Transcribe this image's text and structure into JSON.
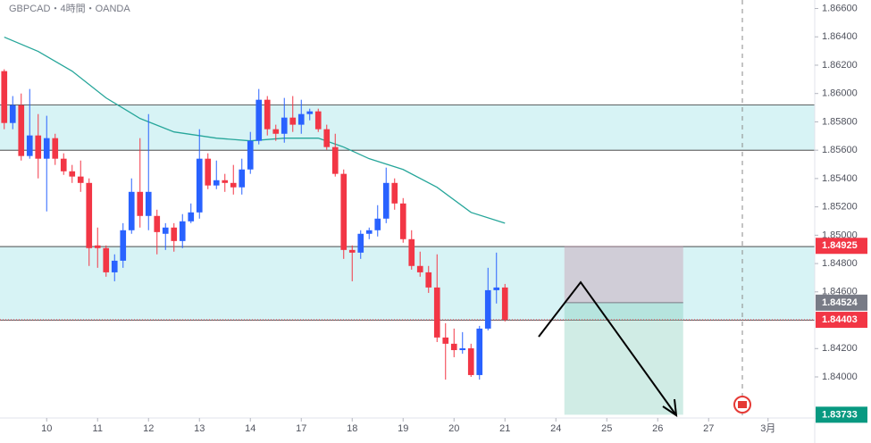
{
  "chart_data": {
    "type": "candlestick",
    "title": "GBPCAD・4時間・OANDA",
    "ylim": [
      1.8371,
      1.8666
    ],
    "xlim": [
      -0.5,
      95.5
    ],
    "yticks": [
      {
        "value": 1.866,
        "label": "1.86600"
      },
      {
        "value": 1.864,
        "label": "1.86400"
      },
      {
        "value": 1.862,
        "label": "1.86200"
      },
      {
        "value": 1.86,
        "label": "1.86000"
      },
      {
        "value": 1.858,
        "label": "1.85800"
      },
      {
        "value": 1.856,
        "label": "1.85600"
      },
      {
        "value": 1.854,
        "label": "1.85400"
      },
      {
        "value": 1.852,
        "label": "1.85200"
      },
      {
        "value": 1.85,
        "label": "1.85000"
      },
      {
        "value": 1.848,
        "label": "1.84800"
      },
      {
        "value": 1.846,
        "label": "1.84600"
      },
      {
        "value": 1.842,
        "label": "1.84200"
      },
      {
        "value": 1.84,
        "label": "1.84000"
      }
    ],
    "xticks": [
      {
        "value": 5,
        "label": "10"
      },
      {
        "value": 11,
        "label": "11"
      },
      {
        "value": 17,
        "label": "12"
      },
      {
        "value": 23,
        "label": "13"
      },
      {
        "value": 29,
        "label": "14"
      },
      {
        "value": 35,
        "label": "17"
      },
      {
        "value": 41,
        "label": "18"
      },
      {
        "value": 47,
        "label": "19"
      },
      {
        "value": 53,
        "label": "20"
      },
      {
        "value": 59,
        "label": "21"
      },
      {
        "value": 65,
        "label": "24"
      },
      {
        "value": 71,
        "label": "25"
      },
      {
        "value": 77,
        "label": "26"
      },
      {
        "value": 83,
        "label": "27"
      },
      {
        "value": 90,
        "label": "3月"
      }
    ],
    "up_color": "#2962ff",
    "down_color": "#f23645",
    "candles": {
      "open": [
        1.86158,
        1.85792,
        1.85918,
        1.85559,
        1.85704,
        1.8554,
        1.85685,
        1.8554,
        1.85451,
        1.85414,
        1.85369,
        1.84928,
        1.84909,
        1.84738,
        1.8482,
        1.85035,
        1.85306,
        1.85136,
        1.85136,
        1.8501,
        1.85054,
        1.84959,
        1.85098,
        1.85161,
        1.8554,
        1.85351,
        1.85388,
        1.85369,
        1.85338,
        1.85464,
        1.85666,
        1.85956,
        1.85748,
        1.85716,
        1.8583,
        1.8578,
        1.85855,
        1.85874,
        1.85748,
        1.85622,
        1.85433,
        1.84896,
        1.84877,
        1.8501,
        1.85035,
        1.85117,
        1.85369,
        1.85224,
        1.84972,
        1.84783,
        1.84738,
        1.84631,
        1.84278,
        1.84234,
        1.84189,
        1.84202,
        1.84013,
        1.84341,
        1.84612,
        1.84631
      ],
      "high": [
        1.86171,
        1.85982,
        1.86,
        1.86032,
        1.85855,
        1.85843,
        1.85716,
        1.85578,
        1.85496,
        1.85527,
        1.85401,
        1.85054,
        1.84928,
        1.84865,
        1.85085,
        1.85401,
        1.85685,
        1.85855,
        1.8518,
        1.85085,
        1.85085,
        1.85149,
        1.85224,
        1.85748,
        1.85578,
        1.85527,
        1.85433,
        1.85496,
        1.8554,
        1.85729,
        1.86032,
        1.85982,
        1.8578,
        1.85969,
        1.85982,
        1.85956,
        1.85893,
        1.85893,
        1.8578,
        1.85716,
        1.85464,
        1.84928,
        1.85035,
        1.85054,
        1.85212,
        1.85477,
        1.85401,
        1.85262,
        1.85035,
        1.84884,
        1.84783,
        1.84865,
        1.84379,
        1.84341,
        1.84316,
        1.84234,
        1.8436,
        1.8477,
        1.84877,
        1.84656
      ],
      "low": [
        1.85748,
        1.85748,
        1.85527,
        1.8554,
        1.85401,
        1.85168,
        1.85496,
        1.85426,
        1.85369,
        1.85306,
        1.84783,
        1.8477,
        1.84707,
        1.84675,
        1.8477,
        1.8501,
        1.85054,
        1.85035,
        1.84865,
        1.84896,
        1.84884,
        1.84909,
        1.85085,
        1.85117,
        1.85325,
        1.85325,
        1.85306,
        1.85287,
        1.85287,
        1.85433,
        1.85641,
        1.85704,
        1.85666,
        1.85653,
        1.85729,
        1.85716,
        1.85811,
        1.85729,
        1.85603,
        1.85414,
        1.84833,
        1.84675,
        1.84833,
        1.84972,
        1.84991,
        1.85085,
        1.8518,
        1.84947,
        1.84757,
        1.84707,
        1.84593,
        1.84246,
        1.83981,
        1.84139,
        1.84164,
        1.84,
        1.83981,
        1.84328,
        1.84518,
        1.84391
      ],
      "close": [
        1.85792,
        1.85918,
        1.85559,
        1.85704,
        1.8554,
        1.85685,
        1.8554,
        1.85451,
        1.85414,
        1.85369,
        1.84909,
        1.84909,
        1.84738,
        1.8482,
        1.85035,
        1.85306,
        1.85136,
        1.85306,
        1.85022,
        1.85054,
        1.84959,
        1.85098,
        1.85161,
        1.8554,
        1.85351,
        1.85388,
        1.85369,
        1.85338,
        1.85464,
        1.85666,
        1.85956,
        1.85748,
        1.85716,
        1.8583,
        1.8578,
        1.85855,
        1.85874,
        1.85748,
        1.85622,
        1.85433,
        1.84896,
        1.84877,
        1.8501,
        1.85035,
        1.85117,
        1.85369,
        1.85224,
        1.84972,
        1.84783,
        1.84738,
        1.84631,
        1.84278,
        1.84234,
        1.84189,
        1.84202,
        1.84013,
        1.84341,
        1.84612,
        1.84631,
        1.84404
      ]
    },
    "moving_average": {
      "color": "#26a69a",
      "x": [
        0,
        4,
        8,
        12,
        16,
        20,
        25,
        29,
        33,
        37,
        40,
        43,
        47,
        51,
        55,
        59
      ],
      "values": [
        1.86398,
        1.86297,
        1.86158,
        1.85969,
        1.85824,
        1.85729,
        1.85685,
        1.85666,
        1.85685,
        1.85685,
        1.85622,
        1.8554,
        1.85464,
        1.85338,
        1.85161,
        1.85085
      ]
    },
    "zones": [
      {
        "top": 1.8592,
        "bottom": 1.856
      },
      {
        "top": 1.8492,
        "bottom": 1.844
      }
    ],
    "position": {
      "start": 66,
      "end": 80,
      "entry": 1.84524,
      "stop": 1.84925,
      "target": 1.83733
    },
    "last_price": 1.84403
  }
}
